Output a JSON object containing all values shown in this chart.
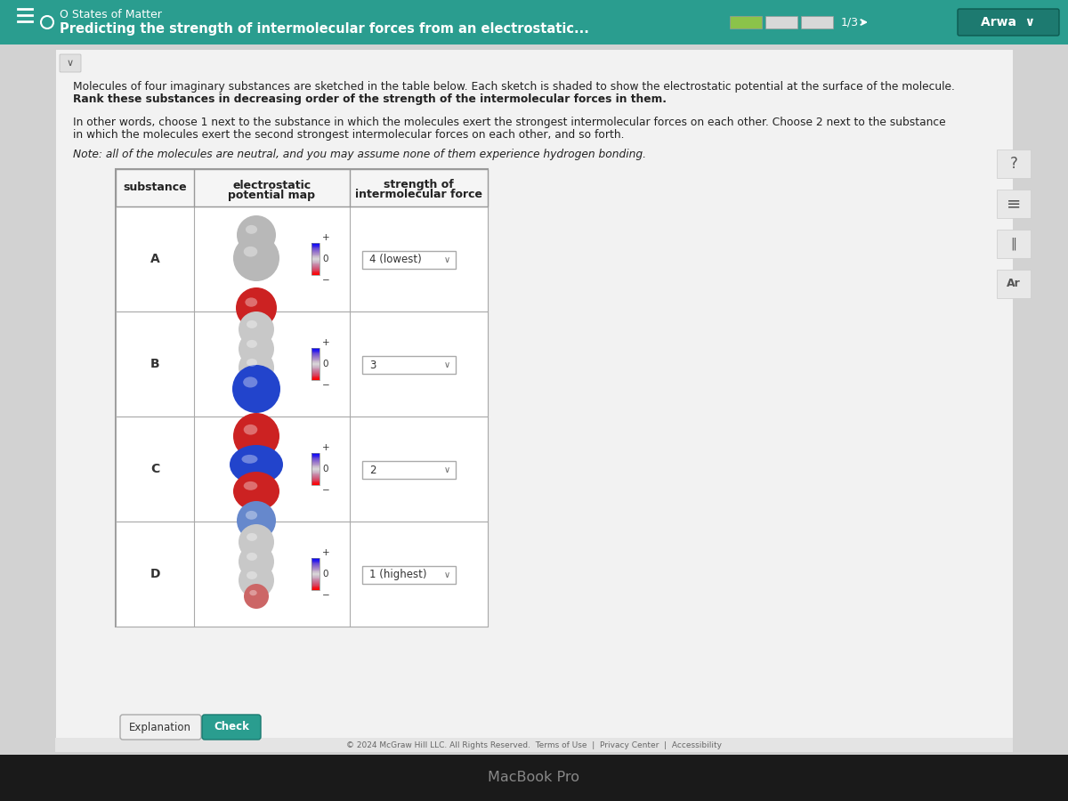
{
  "title_bar_color": "#2a9d8f",
  "title_bar_text1": "O States of Matter",
  "title_bar_text2": "Predicting the strength of intermolecular forces from an electrostatic...",
  "progress_text": "1/3",
  "bg_color": "#d0d0d0",
  "content_bg": "#efefef",
  "header_text1": "Molecules of four imaginary substances are sketched in the table below. Each sketch is shaded to show the electrostatic potential at the surface of the molecule.",
  "header_text2": "Rank these substances in decreasing order of the strength of the intermolecular forces in them.",
  "header_text3": "In other words, choose 1 next to the substance in which the molecules exert the strongest intermolecular forces on each other. Choose 2 next to the substance",
  "header_text4": "in which the molecules exert the second strongest intermolecular forces on each other, and so forth.",
  "header_text5": "Note: all of the molecules are neutral, and you may assume none of them experience hydrogen bonding.",
  "substances": [
    "A",
    "B",
    "C",
    "D"
  ],
  "rankings": [
    "4 (lowest)",
    "3",
    "2",
    "1 (highest)"
  ],
  "footer_text": "© 2024 McGraw Hill LLC. All Rights Reserved.  Terms of Use  |  Privacy Center  |  Accessibility",
  "macbook_text": "MacBook Pro"
}
